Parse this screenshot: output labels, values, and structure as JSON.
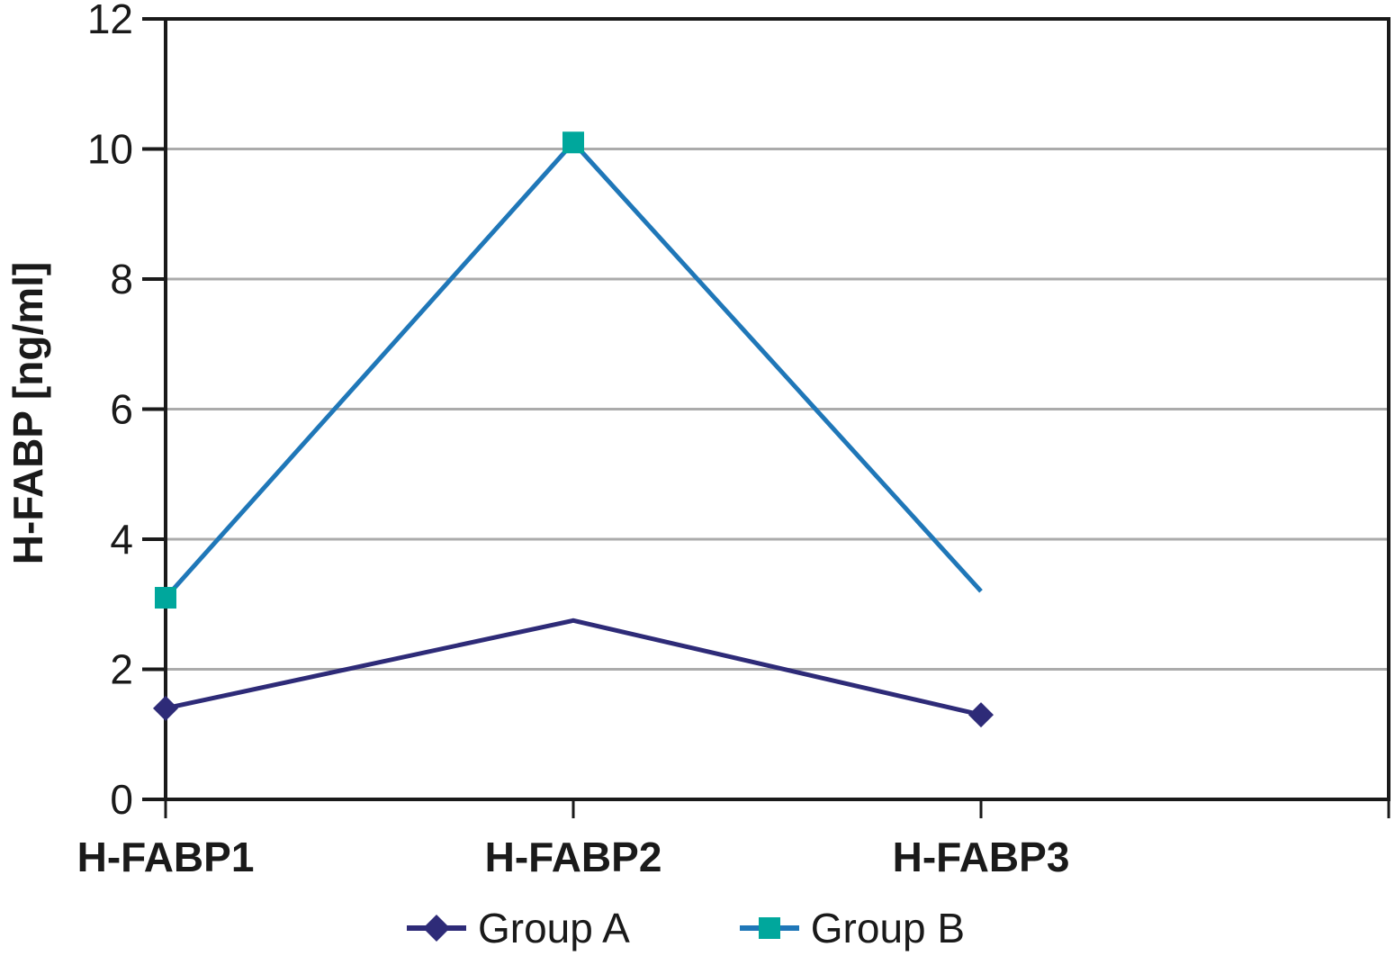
{
  "chart_data": {
    "type": "line",
    "categories": [
      "H-FABP1",
      "H-FABP2",
      "H-FABP3"
    ],
    "series": [
      {
        "name": "Group A",
        "values": [
          1.4,
          2.75,
          1.3
        ],
        "line_color": "#2e2b78",
        "marker": "diamond",
        "marker_color": "#2e2b78",
        "marker_points": [
          0,
          2
        ]
      },
      {
        "name": "Group B",
        "values": [
          3.1,
          10.1,
          3.2
        ],
        "line_color": "#1f77b8",
        "marker": "square",
        "marker_color": "#00a79c",
        "marker_points": [
          0,
          1
        ]
      }
    ],
    "title": "",
    "xlabel": "",
    "ylabel": "H-FABP [ng/ml]",
    "ylim": [
      0,
      12
    ],
    "yticks": [
      0,
      2,
      4,
      6,
      8,
      10,
      12
    ],
    "ytick_labels": [
      "0",
      "2",
      "4",
      "6",
      "8",
      "10",
      "12"
    ],
    "grid": "horizontal",
    "legend_position": "bottom",
    "colors": {
      "axis": "#1a1a1a",
      "gridline": "#ababab",
      "text": "#1a1a1a",
      "background": "#ffffff"
    }
  }
}
